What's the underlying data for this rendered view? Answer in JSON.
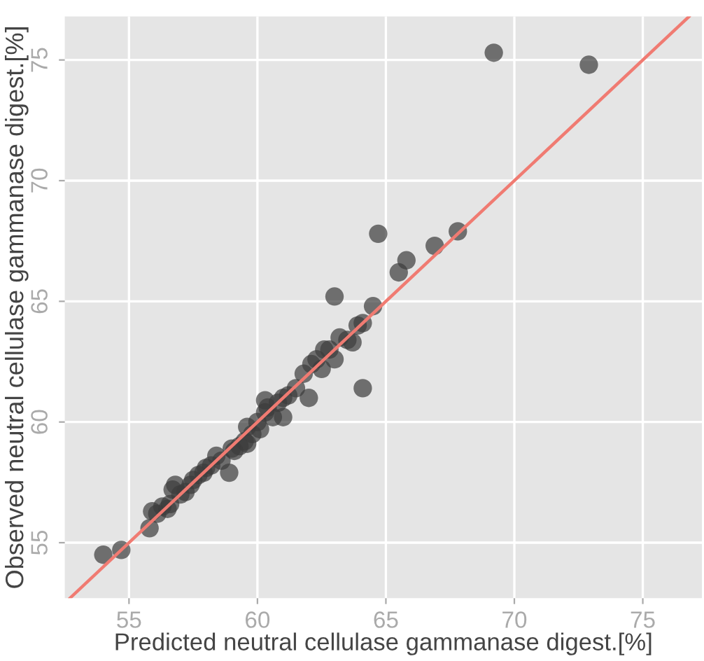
{
  "chart_data": {
    "type": "scatter",
    "xlabel": "Predicted neutral cellulase gammanase digest.[%]",
    "ylabel": "Observed neutral cellulase gammanase digest.[%]",
    "xlim": [
      52.5,
      77.3
    ],
    "ylim": [
      52.7,
      76.8
    ],
    "xticks": [
      55,
      60,
      65,
      70,
      75
    ],
    "yticks": [
      55,
      60,
      65,
      70,
      75
    ],
    "grid": true,
    "series": [
      {
        "color": "#3c3c3c",
        "marker": "circle",
        "x": [
          54.0,
          54.7,
          55.8,
          55.9,
          56.1,
          56.3,
          56.5,
          56.6,
          56.8,
          57.0,
          57.2,
          57.4,
          57.5,
          57.7,
          57.9,
          58.0,
          58.2,
          58.4,
          58.6,
          58.9,
          59.1,
          59.3,
          59.5,
          59.6,
          59.8,
          60.0,
          60.1,
          60.3,
          60.4,
          60.6,
          60.8,
          61.0,
          61.2,
          61.5,
          61.8,
          62.0,
          62.1,
          62.3,
          62.5,
          62.8,
          63.0,
          63.2,
          63.5,
          63.7,
          63.9,
          64.1,
          64.1,
          64.5,
          64.7,
          65.5,
          65.8,
          66.9,
          67.8,
          69.2,
          72.9,
          56.7,
          59.6,
          60.3,
          62.6,
          63.0,
          61.0,
          59.0
        ],
        "values": [
          54.5,
          54.7,
          55.6,
          56.3,
          56.2,
          56.5,
          56.4,
          56.6,
          57.4,
          57.0,
          57.1,
          57.4,
          57.6,
          57.8,
          57.9,
          58.1,
          58.2,
          58.6,
          58.4,
          57.9,
          58.8,
          59.0,
          59.2,
          59.8,
          59.5,
          60.0,
          59.7,
          60.4,
          60.6,
          60.2,
          60.8,
          61.0,
          61.1,
          61.4,
          62.0,
          61.0,
          62.4,
          62.6,
          62.2,
          63.0,
          65.2,
          63.5,
          63.4,
          63.3,
          64.0,
          61.4,
          64.1,
          64.8,
          67.8,
          66.2,
          66.7,
          67.3,
          67.9,
          75.3,
          74.8,
          57.2,
          59.1,
          60.9,
          63.0,
          62.6,
          60.2,
          58.9
        ]
      },
      {
        "type": "line",
        "color": "#f07b72",
        "x": [
          52.7,
          76.8
        ],
        "values": [
          52.7,
          76.8
        ]
      }
    ]
  }
}
